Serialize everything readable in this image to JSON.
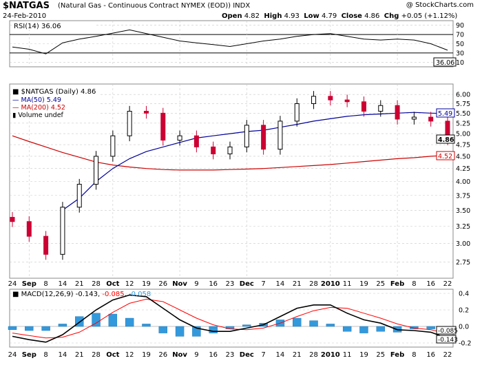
{
  "header": {
    "symbol": "$NATGAS",
    "description": "(Natural Gas - Continuous Contract NYMEX (EOD))",
    "exchange": "INDX",
    "date": "24-Feb-2010",
    "open_label": "Open",
    "open": "4.82",
    "high_label": "High",
    "high": "4.93",
    "low_label": "Low",
    "low": "4.79",
    "close_label": "Close",
    "close": "4.86",
    "chg_label": "Chg",
    "chg": "+0.05 (+1.12%)",
    "watermark": "@ StockCharts.com"
  },
  "colors": {
    "up": "#000000",
    "down": "#cc0033",
    "ma50": "#000099",
    "ma200": "#cc0000",
    "hist": "#3399dd",
    "signal": "#ff0000",
    "grid": "#c8c8c8"
  },
  "chart_data": [
    {
      "type": "line",
      "panel": "rsi",
      "legend": "RSI(14) 36.06",
      "ylim": [
        0,
        100
      ],
      "y_ticks": [
        90,
        70,
        50,
        30,
        10
      ],
      "reference_lines": [
        70,
        30
      ],
      "current_value": "36.06",
      "x_dates": [
        "Aug 24",
        "Aug 31",
        "Sep 7",
        "Sep 14",
        "Sep 21",
        "Sep 28",
        "Oct 5",
        "Oct 12",
        "Oct 19",
        "Oct 26",
        "Nov 2",
        "Nov 9",
        "Nov 16",
        "Nov 23",
        "Nov 30",
        "Dec 7",
        "Dec 14",
        "Dec 21",
        "Dec 28",
        "Jan 4",
        "Jan 11",
        "Jan 18",
        "Jan 25",
        "Feb 1",
        "Feb 8",
        "Feb 15",
        "Feb 22"
      ],
      "values": [
        43,
        38,
        28,
        52,
        60,
        66,
        73,
        80,
        72,
        64,
        56,
        52,
        48,
        44,
        50,
        56,
        60,
        66,
        70,
        72,
        66,
        60,
        58,
        60,
        58,
        50,
        36
      ]
    },
    {
      "type": "candlestick",
      "panel": "price",
      "legend": "$NATGAS (Daily) 4.86",
      "overlays": [
        {
          "name": "MA(50)",
          "value": "5.49"
        },
        {
          "name": "MA(200)",
          "value": "4.52"
        },
        {
          "name": "Volume",
          "value": "undef"
        }
      ],
      "y_scale": "log",
      "ylim": [
        2.55,
        6.3
      ],
      "y_ticks": [
        "6.00",
        "5.75",
        "5.50",
        "5.25",
        "5.00",
        "4.75",
        "4.50",
        "4.25",
        "4.00",
        "3.75",
        "3.50",
        "3.25",
        "3.00",
        "2.75"
      ],
      "last_price": "4.86",
      "x_ticks": [
        "24",
        "Sep",
        "8",
        "14",
        "21",
        "28",
        "Oct",
        "12",
        "19",
        "26",
        "Nov",
        "9",
        "16",
        "23",
        "Dec",
        "7",
        "14",
        "21",
        "28",
        "2010",
        "11",
        "19",
        "25",
        "Feb",
        "8",
        "16",
        "22"
      ],
      "x_dates": [
        "Aug 24",
        "Aug 31",
        "Sep 7",
        "Sep 14",
        "Sep 21",
        "Sep 28",
        "Oct 5",
        "Oct 12",
        "Oct 19",
        "Oct 26",
        "Nov 2",
        "Nov 9",
        "Nov 16",
        "Nov 23",
        "Nov 30",
        "Dec 7",
        "Dec 14",
        "Dec 21",
        "Dec 28",
        "Jan 4",
        "Jan 11",
        "Jan 18",
        "Jan 25",
        "Feb 1",
        "Feb 8",
        "Feb 15",
        "Feb 22"
      ],
      "close": [
        3.32,
        3.1,
        2.85,
        3.55,
        3.95,
        4.5,
        4.95,
        5.55,
        5.5,
        4.85,
        4.95,
        4.7,
        4.55,
        4.7,
        5.2,
        4.65,
        5.3,
        5.75,
        5.95,
        5.85,
        5.8,
        5.55,
        5.7,
        5.35,
        5.4,
        5.3,
        4.86
      ],
      "ma50": [
        null,
        null,
        null,
        3.5,
        3.7,
        4.0,
        4.25,
        4.45,
        4.6,
        4.7,
        4.8,
        4.9,
        4.95,
        5.0,
        5.05,
        5.08,
        5.15,
        5.22,
        5.3,
        5.36,
        5.42,
        5.46,
        5.48,
        5.5,
        5.52,
        5.5,
        5.49
      ],
      "ma200": [
        4.95,
        4.82,
        4.7,
        4.58,
        4.48,
        4.38,
        4.32,
        4.28,
        4.25,
        4.23,
        4.22,
        4.22,
        4.22,
        4.23,
        4.24,
        4.25,
        4.27,
        4.29,
        4.31,
        4.33,
        4.36,
        4.39,
        4.42,
        4.45,
        4.47,
        4.5,
        4.52
      ]
    },
    {
      "type": "line",
      "panel": "macd",
      "legend_label": "MACD(12,26,9)",
      "legend_macd": "-0.143",
      "legend_signal": "-0.085",
      "legend_hist": "-0.058",
      "ylim": [
        -0.25,
        0.45
      ],
      "y_ticks": [
        "0.4",
        "0.2",
        "0.0",
        "-0.2"
      ],
      "current_values": [
        "-0.085",
        "-0.143"
      ],
      "x_dates": [
        "Aug 24",
        "Aug 31",
        "Sep 7",
        "Sep 14",
        "Sep 21",
        "Sep 28",
        "Oct 5",
        "Oct 12",
        "Oct 19",
        "Oct 26",
        "Nov 2",
        "Nov 9",
        "Nov 16",
        "Nov 23",
        "Nov 30",
        "Dec 7",
        "Dec 14",
        "Dec 21",
        "Dec 28",
        "Jan 4",
        "Jan 11",
        "Jan 18",
        "Jan 25",
        "Feb 1",
        "Feb 8",
        "Feb 15",
        "Feb 22"
      ],
      "macd": [
        -0.12,
        -0.16,
        -0.19,
        -0.1,
        0.05,
        0.2,
        0.32,
        0.38,
        0.36,
        0.22,
        0.08,
        -0.02,
        -0.06,
        -0.06,
        -0.02,
        0.02,
        0.12,
        0.22,
        0.26,
        0.26,
        0.16,
        0.08,
        0.04,
        -0.04,
        -0.05,
        -0.07,
        -0.143
      ],
      "signal": [
        -0.08,
        -0.11,
        -0.14,
        -0.13,
        -0.07,
        0.04,
        0.17,
        0.28,
        0.33,
        0.3,
        0.2,
        0.1,
        0.02,
        -0.03,
        -0.04,
        -0.02,
        0.04,
        0.12,
        0.19,
        0.23,
        0.22,
        0.16,
        0.1,
        0.03,
        -0.02,
        -0.04,
        -0.085
      ]
    }
  ]
}
